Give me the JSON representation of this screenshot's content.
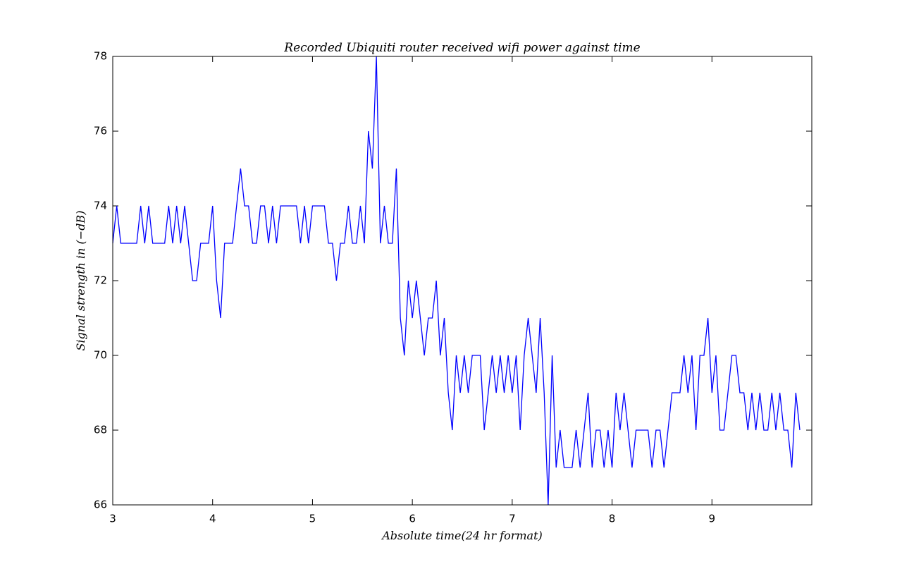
{
  "chart_data": {
    "type": "line",
    "title": "Recorded Ubiquiti router received wifi power against time",
    "x_label": "Absolute time(24 hr format)",
    "y_label": "Signal strength in (−dB)",
    "x": [
      3,
      3.04,
      3.08,
      3.12,
      3.16,
      3.2,
      3.24,
      3.28,
      3.32,
      3.36,
      3.4,
      3.44,
      3.48,
      3.52,
      3.56,
      3.6,
      3.64,
      3.68,
      3.72,
      3.76,
      3.8,
      3.84,
      3.88,
      3.92,
      3.96,
      4,
      4.04,
      4.08,
      4.12,
      4.16,
      4.2,
      4.24,
      4.28,
      4.32,
      4.36,
      4.4,
      4.44,
      4.48,
      4.52,
      4.56,
      4.6,
      4.64,
      4.68,
      4.72,
      4.76,
      4.8,
      4.84,
      4.88,
      4.92,
      4.96,
      5,
      5.04,
      5.08,
      5.12,
      5.16,
      5.2,
      5.24,
      5.28,
      5.32,
      5.36,
      5.4,
      5.44,
      5.48,
      5.52,
      5.56,
      5.6,
      5.64,
      5.68,
      5.72,
      5.76,
      5.8,
      5.84,
      5.88,
      5.92,
      5.96,
      6,
      6.04,
      6.08,
      6.12,
      6.16,
      6.2,
      6.24,
      6.28,
      6.32,
      6.36,
      6.4,
      6.44,
      6.48,
      6.52,
      6.56,
      6.6,
      6.64,
      6.68,
      6.72,
      6.76,
      6.8,
      6.84,
      6.88,
      6.92,
      6.96,
      7,
      7.04,
      7.08,
      7.12,
      7.16,
      7.2,
      7.24,
      7.28,
      7.32,
      7.36,
      7.4,
      7.44,
      7.48,
      7.52,
      7.56,
      7.6,
      7.64,
      7.68,
      7.72,
      7.76,
      7.8,
      7.84,
      7.88,
      7.92,
      7.96,
      8,
      8.04,
      8.08,
      8.12,
      8.16,
      8.2,
      8.24,
      8.28,
      8.32,
      8.36,
      8.4,
      8.44,
      8.48,
      8.52,
      8.56,
      8.6,
      8.64,
      8.68,
      8.72,
      8.76,
      8.8,
      8.84,
      8.88,
      8.92,
      8.96,
      9,
      9.04,
      9.08,
      9.12,
      9.16,
      9.2,
      9.24,
      9.28,
      9.32,
      9.36,
      9.4,
      9.44,
      9.48,
      9.52,
      9.56,
      9.6,
      9.64,
      9.68,
      9.72,
      9.76,
      9.8,
      9.84,
      9.88
    ],
    "series": [
      {
        "color": "#0000ff",
        "values": [
          73,
          74,
          73,
          73,
          73,
          73,
          73,
          74,
          73,
          74,
          73,
          73,
          73,
          73,
          74,
          73,
          74,
          73,
          74,
          73,
          72,
          72,
          73,
          73,
          73,
          74,
          72,
          71,
          73,
          73,
          73,
          74,
          75,
          74,
          74,
          73,
          73,
          74,
          74,
          73,
          74,
          73,
          74,
          74,
          74,
          74,
          74,
          73,
          74,
          73,
          74,
          74,
          74,
          74,
          73,
          73,
          72,
          73,
          73,
          74,
          73,
          73,
          74,
          73,
          76,
          75,
          78,
          73,
          74,
          73,
          73,
          75,
          71,
          70,
          72,
          71,
          72,
          71,
          70,
          71,
          71,
          72,
          70,
          71,
          69,
          68,
          70,
          69,
          70,
          69,
          70,
          70,
          70,
          68,
          69,
          70,
          69,
          70,
          69,
          70,
          69,
          70,
          68,
          70,
          71,
          70,
          69,
          71,
          69,
          66,
          70,
          67,
          68,
          67,
          67,
          67,
          68,
          67,
          68,
          69,
          67,
          68,
          68,
          67,
          68,
          67,
          69,
          68,
          69,
          68,
          67,
          68,
          68,
          68,
          68,
          67,
          68,
          68,
          67,
          68,
          69,
          69,
          69,
          70,
          69,
          70,
          68,
          70,
          70,
          71,
          69,
          70,
          68,
          68,
          69,
          70,
          70,
          69,
          69,
          68,
          69,
          68,
          69,
          68,
          68,
          69,
          68,
          69,
          68,
          68,
          67,
          69,
          68
        ]
      }
    ],
    "xlim": [
      3,
      10
    ],
    "ylim": [
      66,
      78
    ],
    "xticks": [
      3,
      4,
      5,
      6,
      7,
      8,
      9
    ],
    "yticks": [
      66,
      68,
      70,
      72,
      74,
      76,
      78
    ]
  }
}
